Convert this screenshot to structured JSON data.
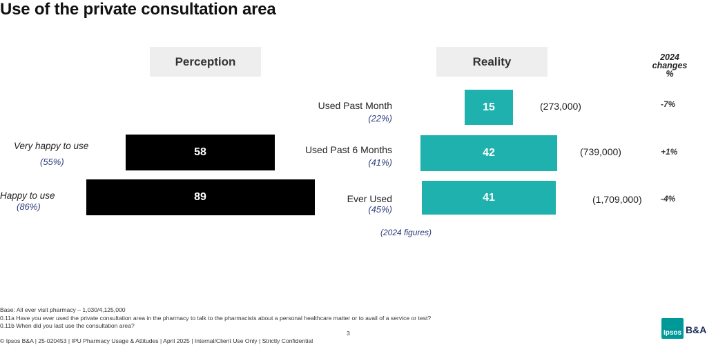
{
  "title": "Use of the private consultation area",
  "headers": {
    "perception": "Perception",
    "reality": "Reality",
    "changes": [
      "2024",
      "changes",
      "%"
    ]
  },
  "chart_data": [
    {
      "type": "bar",
      "name": "Perception",
      "categories": [
        "Very happy to use",
        "Happy to use"
      ],
      "values": [
        58,
        89
      ],
      "percent_labels": [
        "(55%)",
        "(86%)"
      ],
      "color": "#000000"
    },
    {
      "type": "bar",
      "name": "Reality",
      "categories": [
        "Used Past Month",
        "Used Past 6 Months",
        "Ever Used"
      ],
      "values": [
        15,
        42,
        41
      ],
      "percent_labels": [
        "(22%)",
        "(41%)",
        "(45%)"
      ],
      "counts": [
        "(273,000)",
        "(739,000)",
        "(1,709,000)"
      ],
      "changes_2024": [
        "-7%",
        "+1%",
        "-4%"
      ],
      "color": "#1fb1ae"
    }
  ],
  "figures_note": "(2024 figures)",
  "footnotes": [
    "Base: All ever visit pharmacy – 1,030/4,125,000",
    "0.11a Have you ever used the private consultation area in the pharmacy to talk to the pharmacists about a personal healthcare matter or to avail of a service or test?",
    "0.11b When did you last use the consultation area?",
    "© Ipsos B&A  | 25-020453 |  IPU  Pharmacy Usage & Attitudes  | April 2025 | Internal/Client Use Only | Strictly Confidential"
  ],
  "page_number": "3",
  "logo": {
    "ipsos": "Ipsos",
    "ba": "B&A"
  }
}
